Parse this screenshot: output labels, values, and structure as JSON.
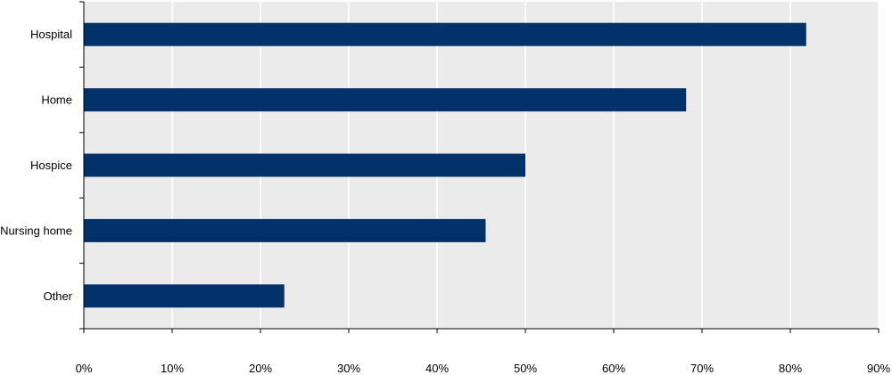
{
  "chart_data": {
    "type": "bar",
    "orientation": "horizontal",
    "title": "",
    "xlabel": "",
    "ylabel": "",
    "categories": [
      "Hospital",
      "Home",
      "Hospice",
      "Nursing home",
      "Other"
    ],
    "values": [
      81.8,
      68.2,
      50.0,
      45.5,
      22.7
    ],
    "xlim": [
      0,
      90
    ],
    "ticks": [
      0,
      10,
      20,
      30,
      40,
      50,
      60,
      70,
      80,
      90
    ],
    "tick_labels": [
      "0%",
      "10%",
      "20%",
      "30%",
      "40%",
      "50%",
      "60%",
      "70%",
      "80%",
      "90%"
    ],
    "grid": true,
    "legend": "none",
    "colors": {
      "bar": "#03326b",
      "plot_bg": "#ebebeb",
      "grid": "#ffffff",
      "axis": "#000000"
    }
  }
}
